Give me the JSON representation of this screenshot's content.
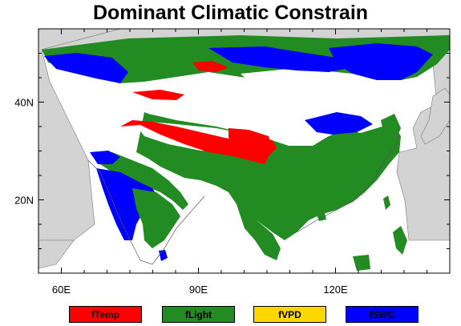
{
  "title": "Dominant Climatic Constrain",
  "map": {
    "x_ticks": [
      {
        "label": "60E",
        "lon": 60
      },
      {
        "label": "90E",
        "lon": 90
      },
      {
        "label": "120E",
        "lon": 120
      }
    ],
    "y_ticks": [
      {
        "label": "40N",
        "lat": 40
      },
      {
        "label": "20N",
        "lat": 20
      }
    ],
    "lon_range": [
      55,
      145
    ],
    "lat_range": [
      5,
      55
    ],
    "colors": {
      "ocean": "#ffffff",
      "no_data_land": "#d3d3d3",
      "frame": "#000000"
    }
  },
  "legend": [
    {
      "label": "fTemp",
      "color": "#ff0000"
    },
    {
      "label": "fLight",
      "color": "#228b22"
    },
    {
      "label": "fVPD",
      "color": "#ffd700"
    },
    {
      "label": "fSWC",
      "color": "#0000ff"
    }
  ]
}
